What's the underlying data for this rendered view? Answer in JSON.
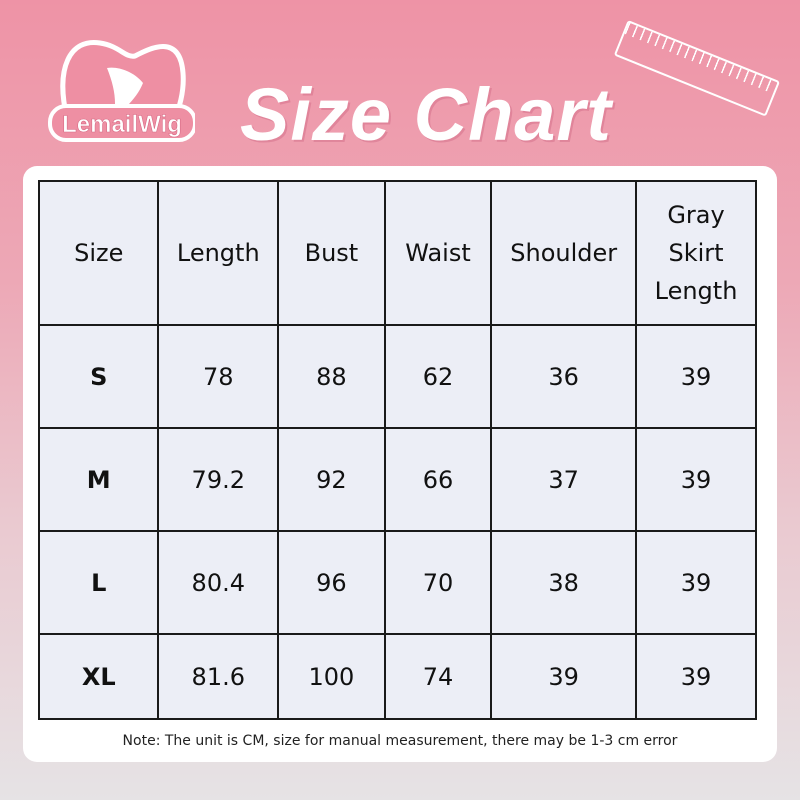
{
  "brand": {
    "logo_text": "LemailWig"
  },
  "title": "Size Chart",
  "table": {
    "headers": [
      "Size",
      "Length",
      "Bust",
      "Waist",
      "Shoulder",
      "Gray Skirt Length"
    ],
    "rows": [
      [
        "S",
        "78",
        "88",
        "62",
        "36",
        "39"
      ],
      [
        "M",
        "79.2",
        "92",
        "66",
        "37",
        "39"
      ],
      [
        "L",
        "80.4",
        "96",
        "70",
        "38",
        "39"
      ],
      [
        "XL",
        "81.6",
        "100",
        "74",
        "39",
        "39"
      ]
    ]
  },
  "note": "Note: The unit is CM, size for manual measurement, there may be 1-3 cm error",
  "colors": {
    "background_top": "#ee93a6",
    "table_fill": "#eceef6"
  }
}
